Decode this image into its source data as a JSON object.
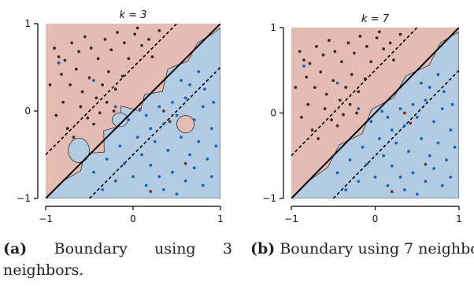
{
  "chart_data": [
    {
      "type": "scatter",
      "title": "k = 3",
      "xlim": [
        -1,
        1
      ],
      "ylim": [
        -1,
        1
      ],
      "x_ticks": [
        "−1",
        "0",
        "1"
      ],
      "y_ticks": [
        "1",
        "0",
        "−1"
      ],
      "grid": false,
      "legend": "none",
      "region_colors": {
        "upper": "#e4bcb4",
        "lower": "#b3cce3"
      },
      "point_colors": {
        "dark": "#3a2d2a",
        "blue": "#1566c0",
        "brown": "#7a3020"
      },
      "series": [
        {
          "name": "",
          "color": "#3a2d2a",
          "points": [
            [
              -0.9,
              0.72
            ],
            [
              -0.85,
              0.62
            ],
            [
              -0.78,
              0.58
            ],
            [
              -0.7,
              0.78
            ],
            [
              -0.62,
              0.68
            ],
            [
              -0.55,
              0.85
            ],
            [
              -0.48,
              0.72
            ],
            [
              -0.4,
              0.6
            ],
            [
              -0.32,
              0.82
            ],
            [
              -0.25,
              0.7
            ],
            [
              -0.18,
              0.9
            ],
            [
              -0.1,
              0.78
            ],
            [
              -0.05,
              0.6
            ],
            [
              0.02,
              0.88
            ],
            [
              0.1,
              0.75
            ],
            [
              0.05,
              0.95
            ],
            [
              -0.82,
              0.42
            ],
            [
              -0.72,
              0.3
            ],
            [
              -0.65,
              0.48
            ],
            [
              -0.58,
              0.22
            ],
            [
              -0.5,
              0.38
            ],
            [
              -0.42,
              0.15
            ],
            [
              -0.35,
              0.3
            ],
            [
              -0.28,
              0.45
            ],
            [
              -0.2,
              0.25
            ],
            [
              -0.12,
              0.4
            ],
            [
              -0.6,
              0.05
            ],
            [
              -0.52,
              -0.08
            ],
            [
              -0.45,
              -0.15
            ],
            [
              -0.38,
              -0.02
            ],
            [
              -0.3,
              0.1
            ],
            [
              -0.22,
              0.0
            ],
            [
              -0.8,
              0.1
            ],
            [
              -0.88,
              -0.05
            ],
            [
              -0.75,
              -0.2
            ],
            [
              -0.68,
              -0.3
            ],
            [
              0.18,
              0.82
            ],
            [
              0.22,
              0.62
            ],
            [
              -0.95,
              0.3
            ],
            [
              0.3,
              0.92
            ]
          ]
        },
        {
          "name": "",
          "color": "#1566c0",
          "points": [
            [
              -0.85,
              0.55
            ],
            [
              -0.45,
              0.35
            ],
            [
              -0.2,
              0.05
            ],
            [
              -0.05,
              -0.1
            ],
            [
              0.08,
              0.02
            ],
            [
              0.15,
              -0.05
            ],
            [
              0.2,
              -0.2
            ],
            [
              0.3,
              0.05
            ],
            [
              0.35,
              -0.15
            ],
            [
              0.45,
              0.1
            ],
            [
              0.5,
              -0.05
            ],
            [
              0.6,
              0.15
            ],
            [
              0.7,
              -0.1
            ],
            [
              0.8,
              0.05
            ],
            [
              0.9,
              -0.2
            ],
            [
              0.25,
              -0.35
            ],
            [
              0.4,
              -0.45
            ],
            [
              0.55,
              -0.3
            ],
            [
              0.65,
              -0.5
            ],
            [
              0.75,
              -0.35
            ],
            [
              0.85,
              -0.55
            ],
            [
              0.95,
              -0.4
            ],
            [
              0.1,
              -0.5
            ],
            [
              0.2,
              -0.62
            ],
            [
              0.3,
              -0.75
            ],
            [
              0.45,
              -0.7
            ],
            [
              0.6,
              -0.8
            ],
            [
              0.7,
              -0.65
            ],
            [
              0.8,
              -0.85
            ],
            [
              0.9,
              -0.75
            ],
            [
              -0.1,
              -0.6
            ],
            [
              0.0,
              -0.75
            ],
            [
              0.15,
              -0.85
            ],
            [
              0.35,
              -0.9
            ],
            [
              0.5,
              -0.95
            ],
            [
              -0.2,
              -0.8
            ],
            [
              -0.35,
              -0.9
            ],
            [
              0.05,
              -0.3
            ],
            [
              -0.15,
              -0.4
            ],
            [
              0.65,
              0.3
            ],
            [
              0.55,
              0.35
            ],
            [
              0.82,
              0.25
            ],
            [
              0.92,
              0.1
            ],
            [
              0.75,
              0.45
            ],
            [
              -0.3,
              -0.55
            ],
            [
              -0.45,
              -0.7
            ]
          ]
        },
        {
          "name": "",
          "color": "#7a3020",
          "points": [
            [
              0.42,
              -0.12
            ],
            [
              0.6,
              -0.6
            ],
            [
              0.2,
              -0.92
            ],
            [
              0.35,
              0.0
            ]
          ]
        }
      ]
    },
    {
      "type": "scatter",
      "title": "k = 7",
      "xlim": [
        -1,
        1
      ],
      "ylim": [
        -1,
        1
      ],
      "x_ticks": [
        "−1",
        "0",
        "1"
      ],
      "y_ticks": [
        "1",
        "0",
        "−1"
      ],
      "grid": false,
      "legend": "none",
      "region_colors": {
        "upper": "#e4bcb4",
        "lower": "#b3cce3"
      },
      "point_colors": {
        "dark": "#3a2d2a",
        "blue": "#1566c0",
        "brown": "#7a3020"
      },
      "series": [
        {
          "name": "",
          "color": "#3a2d2a",
          "points": [
            [
              -0.9,
              0.72
            ],
            [
              -0.85,
              0.62
            ],
            [
              -0.78,
              0.58
            ],
            [
              -0.7,
              0.78
            ],
            [
              -0.62,
              0.68
            ],
            [
              -0.55,
              0.85
            ],
            [
              -0.48,
              0.72
            ],
            [
              -0.4,
              0.6
            ],
            [
              -0.32,
              0.82
            ],
            [
              -0.25,
              0.7
            ],
            [
              -0.18,
              0.9
            ],
            [
              -0.1,
              0.78
            ],
            [
              -0.05,
              0.6
            ],
            [
              0.02,
              0.88
            ],
            [
              0.1,
              0.75
            ],
            [
              0.05,
              0.95
            ],
            [
              -0.82,
              0.42
            ],
            [
              -0.72,
              0.3
            ],
            [
              -0.65,
              0.48
            ],
            [
              -0.58,
              0.22
            ],
            [
              -0.5,
              0.38
            ],
            [
              -0.42,
              0.15
            ],
            [
              -0.35,
              0.3
            ],
            [
              -0.28,
              0.45
            ],
            [
              -0.2,
              0.25
            ],
            [
              -0.12,
              0.4
            ],
            [
              -0.6,
              0.05
            ],
            [
              -0.52,
              -0.08
            ],
            [
              -0.45,
              -0.15
            ],
            [
              -0.38,
              -0.02
            ],
            [
              -0.3,
              0.1
            ],
            [
              -0.22,
              0.0
            ],
            [
              -0.8,
              0.1
            ],
            [
              -0.88,
              -0.05
            ],
            [
              -0.75,
              -0.2
            ],
            [
              -0.68,
              -0.3
            ],
            [
              0.18,
              0.82
            ],
            [
              0.22,
              0.62
            ],
            [
              -0.95,
              0.3
            ],
            [
              0.3,
              0.92
            ]
          ]
        },
        {
          "name": "",
          "color": "#1566c0",
          "points": [
            [
              -0.85,
              0.55
            ],
            [
              -0.45,
              0.35
            ],
            [
              -0.2,
              0.05
            ],
            [
              -0.05,
              -0.1
            ],
            [
              0.08,
              0.02
            ],
            [
              0.15,
              -0.05
            ],
            [
              0.2,
              -0.2
            ],
            [
              0.3,
              0.05
            ],
            [
              0.35,
              -0.15
            ],
            [
              0.45,
              0.1
            ],
            [
              0.5,
              -0.05
            ],
            [
              0.6,
              0.15
            ],
            [
              0.7,
              -0.1
            ],
            [
              0.8,
              0.05
            ],
            [
              0.9,
              -0.2
            ],
            [
              0.25,
              -0.35
            ],
            [
              0.4,
              -0.45
            ],
            [
              0.55,
              -0.3
            ],
            [
              0.65,
              -0.5
            ],
            [
              0.75,
              -0.35
            ],
            [
              0.85,
              -0.55
            ],
            [
              0.95,
              -0.4
            ],
            [
              0.1,
              -0.5
            ],
            [
              0.2,
              -0.62
            ],
            [
              0.3,
              -0.75
            ],
            [
              0.45,
              -0.7
            ],
            [
              0.6,
              -0.8
            ],
            [
              0.7,
              -0.65
            ],
            [
              0.8,
              -0.85
            ],
            [
              0.9,
              -0.75
            ],
            [
              -0.1,
              -0.6
            ],
            [
              0.0,
              -0.75
            ],
            [
              0.15,
              -0.85
            ],
            [
              0.35,
              -0.9
            ],
            [
              0.5,
              -0.95
            ],
            [
              -0.2,
              -0.8
            ],
            [
              -0.35,
              -0.9
            ],
            [
              0.05,
              -0.3
            ],
            [
              -0.15,
              -0.4
            ],
            [
              0.65,
              0.3
            ],
            [
              0.55,
              0.35
            ],
            [
              0.82,
              0.25
            ],
            [
              0.92,
              0.1
            ],
            [
              0.75,
              0.45
            ],
            [
              -0.3,
              -0.55
            ],
            [
              -0.45,
              -0.7
            ]
          ]
        },
        {
          "name": "",
          "color": "#7a3020",
          "points": [
            [
              0.42,
              -0.12
            ],
            [
              0.6,
              -0.6
            ],
            [
              0.2,
              -0.92
            ],
            [
              0.35,
              0.0
            ]
          ]
        }
      ]
    }
  ],
  "captions": [
    {
      "tag": "(a)",
      "text": "Boundary using 3 neighbors."
    },
    {
      "tag": "(b)",
      "text": "Boundary using 7 neighbors."
    }
  ]
}
